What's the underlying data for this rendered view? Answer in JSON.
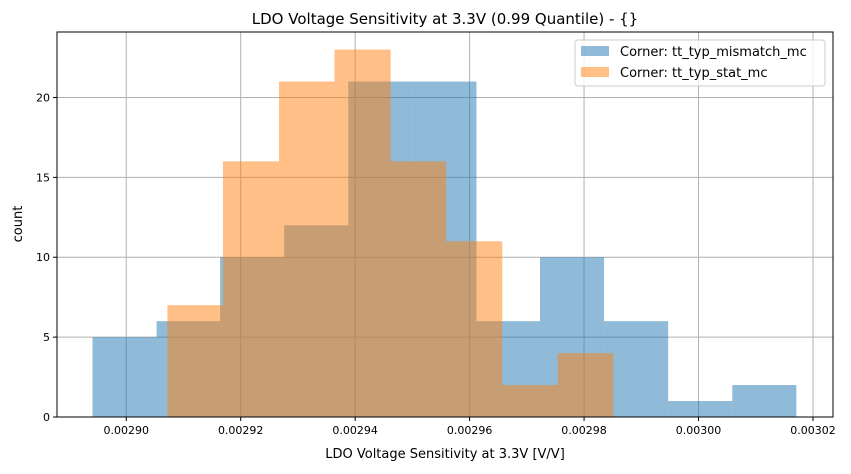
{
  "chart_data": {
    "type": "histogram",
    "title": "LDO Voltage Sensitivity at 3.3V (0.99 Quantile) - {}",
    "xlabel": "LDO Voltage Sensitivity at 3.3V [V/V]",
    "ylabel": "count",
    "xlim": [
      0.0028879,
      0.0030235
    ],
    "ylim": [
      0,
      24.1
    ],
    "grid": true,
    "legend_position": "top-right",
    "xticks": [
      "0.00290",
      "0.00292",
      "0.00294",
      "0.00296",
      "0.00298",
      "0.00300",
      "0.00302"
    ],
    "xtick_values": [
      0.0029,
      0.00292,
      0.00294,
      0.00296,
      0.00298,
      0.003,
      0.00302
    ],
    "yticks": [
      "0",
      "5",
      "10",
      "15",
      "20"
    ],
    "ytick_values": [
      0,
      5,
      10,
      15,
      20
    ],
    "series": [
      {
        "name": "Corner: tt_typ_mismatch_mc",
        "color": "#1f77b4",
        "alpha": 0.5,
        "bin_edges": [
          0.0028941,
          0.0029053,
          0.0029164,
          0.0029276,
          0.0029388,
          0.00295,
          0.0029612,
          0.0029723,
          0.0029835,
          0.0029947,
          0.0030059,
          0.0030171
        ],
        "counts": [
          5,
          6,
          10,
          12,
          21,
          21,
          6,
          10,
          6,
          1,
          2
        ]
      },
      {
        "name": "Corner: tt_typ_stat_mc",
        "color": "#ff7f0e",
        "alpha": 0.5,
        "bin_edges": [
          0.0029072,
          0.0029169,
          0.0029267,
          0.0029364,
          0.0029462,
          0.0029559,
          0.0029657,
          0.0029754,
          0.0029851
        ],
        "counts": [
          7,
          16,
          21,
          23,
          16,
          11,
          2,
          4
        ]
      }
    ]
  }
}
